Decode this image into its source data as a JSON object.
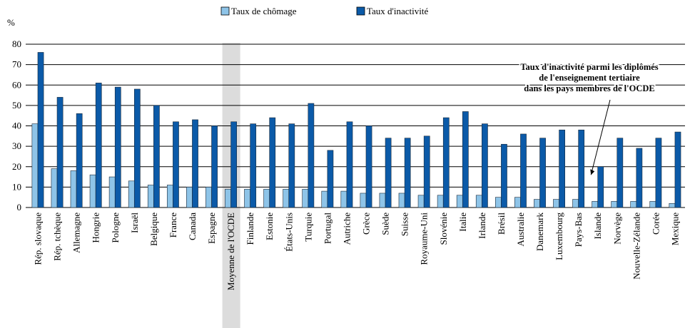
{
  "chart_data": {
    "type": "bar",
    "y_unit": "%",
    "categories": [
      "Rép. slovaque",
      "Rép. tchèque",
      "Allemagne",
      "Hongrie",
      "Pologne",
      "Israël",
      "Belgique",
      "France",
      "Canada",
      "Espagne",
      "Moyenne de l'OCDE",
      "Finlande",
      "Estonie",
      "États-Unis",
      "Turquie",
      "Portugal",
      "Autriche",
      "Grèce",
      "Suède",
      "Suisse",
      "Royaume-Uni",
      "Slovénie",
      "Italie",
      "Irlande",
      "Brésil",
      "Australie",
      "Danemark",
      "Luxembourg",
      "Pays-Bas",
      "Islande",
      "Norvège",
      "Nouvelle-Zélande",
      "Corée",
      "Mexique"
    ],
    "series": [
      {
        "name": "Taux de chômage",
        "color": "#8ec4e8",
        "values": [
          41,
          19,
          18,
          16,
          15,
          13,
          11,
          11,
          10,
          10,
          9,
          9,
          9,
          9,
          9,
          8,
          8,
          7,
          7,
          7,
          6,
          6,
          6,
          6,
          5,
          5,
          4,
          4,
          4,
          3,
          3,
          3,
          3,
          2
        ]
      },
      {
        "name": "Taux d'inactivité",
        "color": "#0b5aa8",
        "values": [
          76,
          54,
          46,
          61,
          59,
          58,
          50,
          42,
          43,
          40,
          42,
          41,
          44,
          41,
          51,
          28,
          42,
          40,
          34,
          34,
          35,
          44,
          47,
          41,
          31,
          36,
          34,
          38,
          38,
          20,
          34,
          29,
          34,
          37
        ]
      }
    ],
    "ylim": [
      0,
      80
    ],
    "yticks": [
      0,
      10,
      20,
      30,
      40,
      50,
      60,
      70,
      80
    ],
    "grid": true,
    "highlight_category": 10,
    "annotation": [
      "Taux d'inactivité parmi les diplômés",
      "de l'enseignement tertiaire",
      "dans les pays membres de l'OCDE"
    ],
    "annotation_target": 29
  }
}
